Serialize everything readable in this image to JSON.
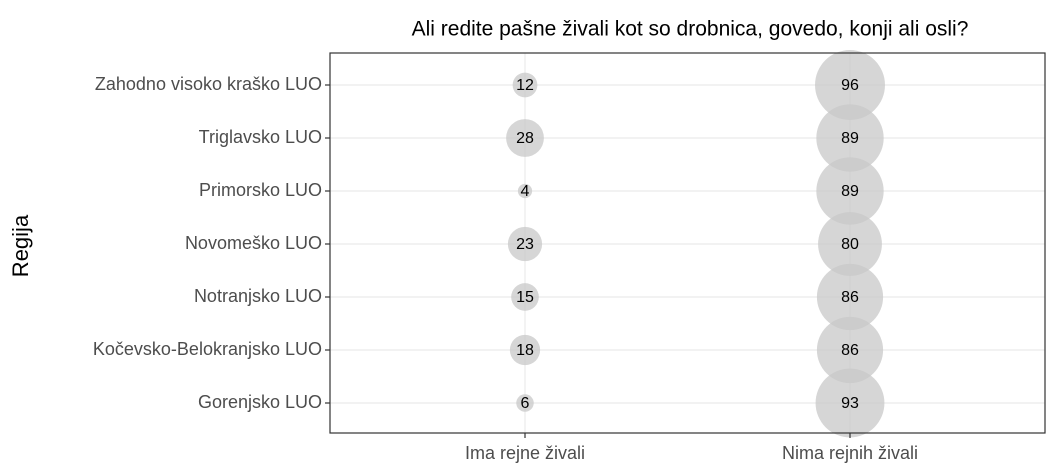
{
  "chart_data": {
    "type": "bubble",
    "title": "Ali redite pašne živali kot so drobnica, govedo, konji ali osli?",
    "ylabel": "Regija",
    "columns": [
      "Ima rejne živali",
      "Nima rejnih živali"
    ],
    "categories": [
      "Zahodno visoko kraško LUO",
      "Triglavsko LUO",
      "Primorsko LUO",
      "Novomeško LUO",
      "Notranjsko LUO",
      "Kočevsko-Belokranjsko LUO",
      "Gorenjsko LUO"
    ],
    "values": [
      [
        12,
        96
      ],
      [
        28,
        89
      ],
      [
        4,
        89
      ],
      [
        23,
        80
      ],
      [
        15,
        86
      ],
      [
        18,
        86
      ],
      [
        6,
        93
      ]
    ],
    "color": "#c8c8c8",
    "grid": true
  }
}
